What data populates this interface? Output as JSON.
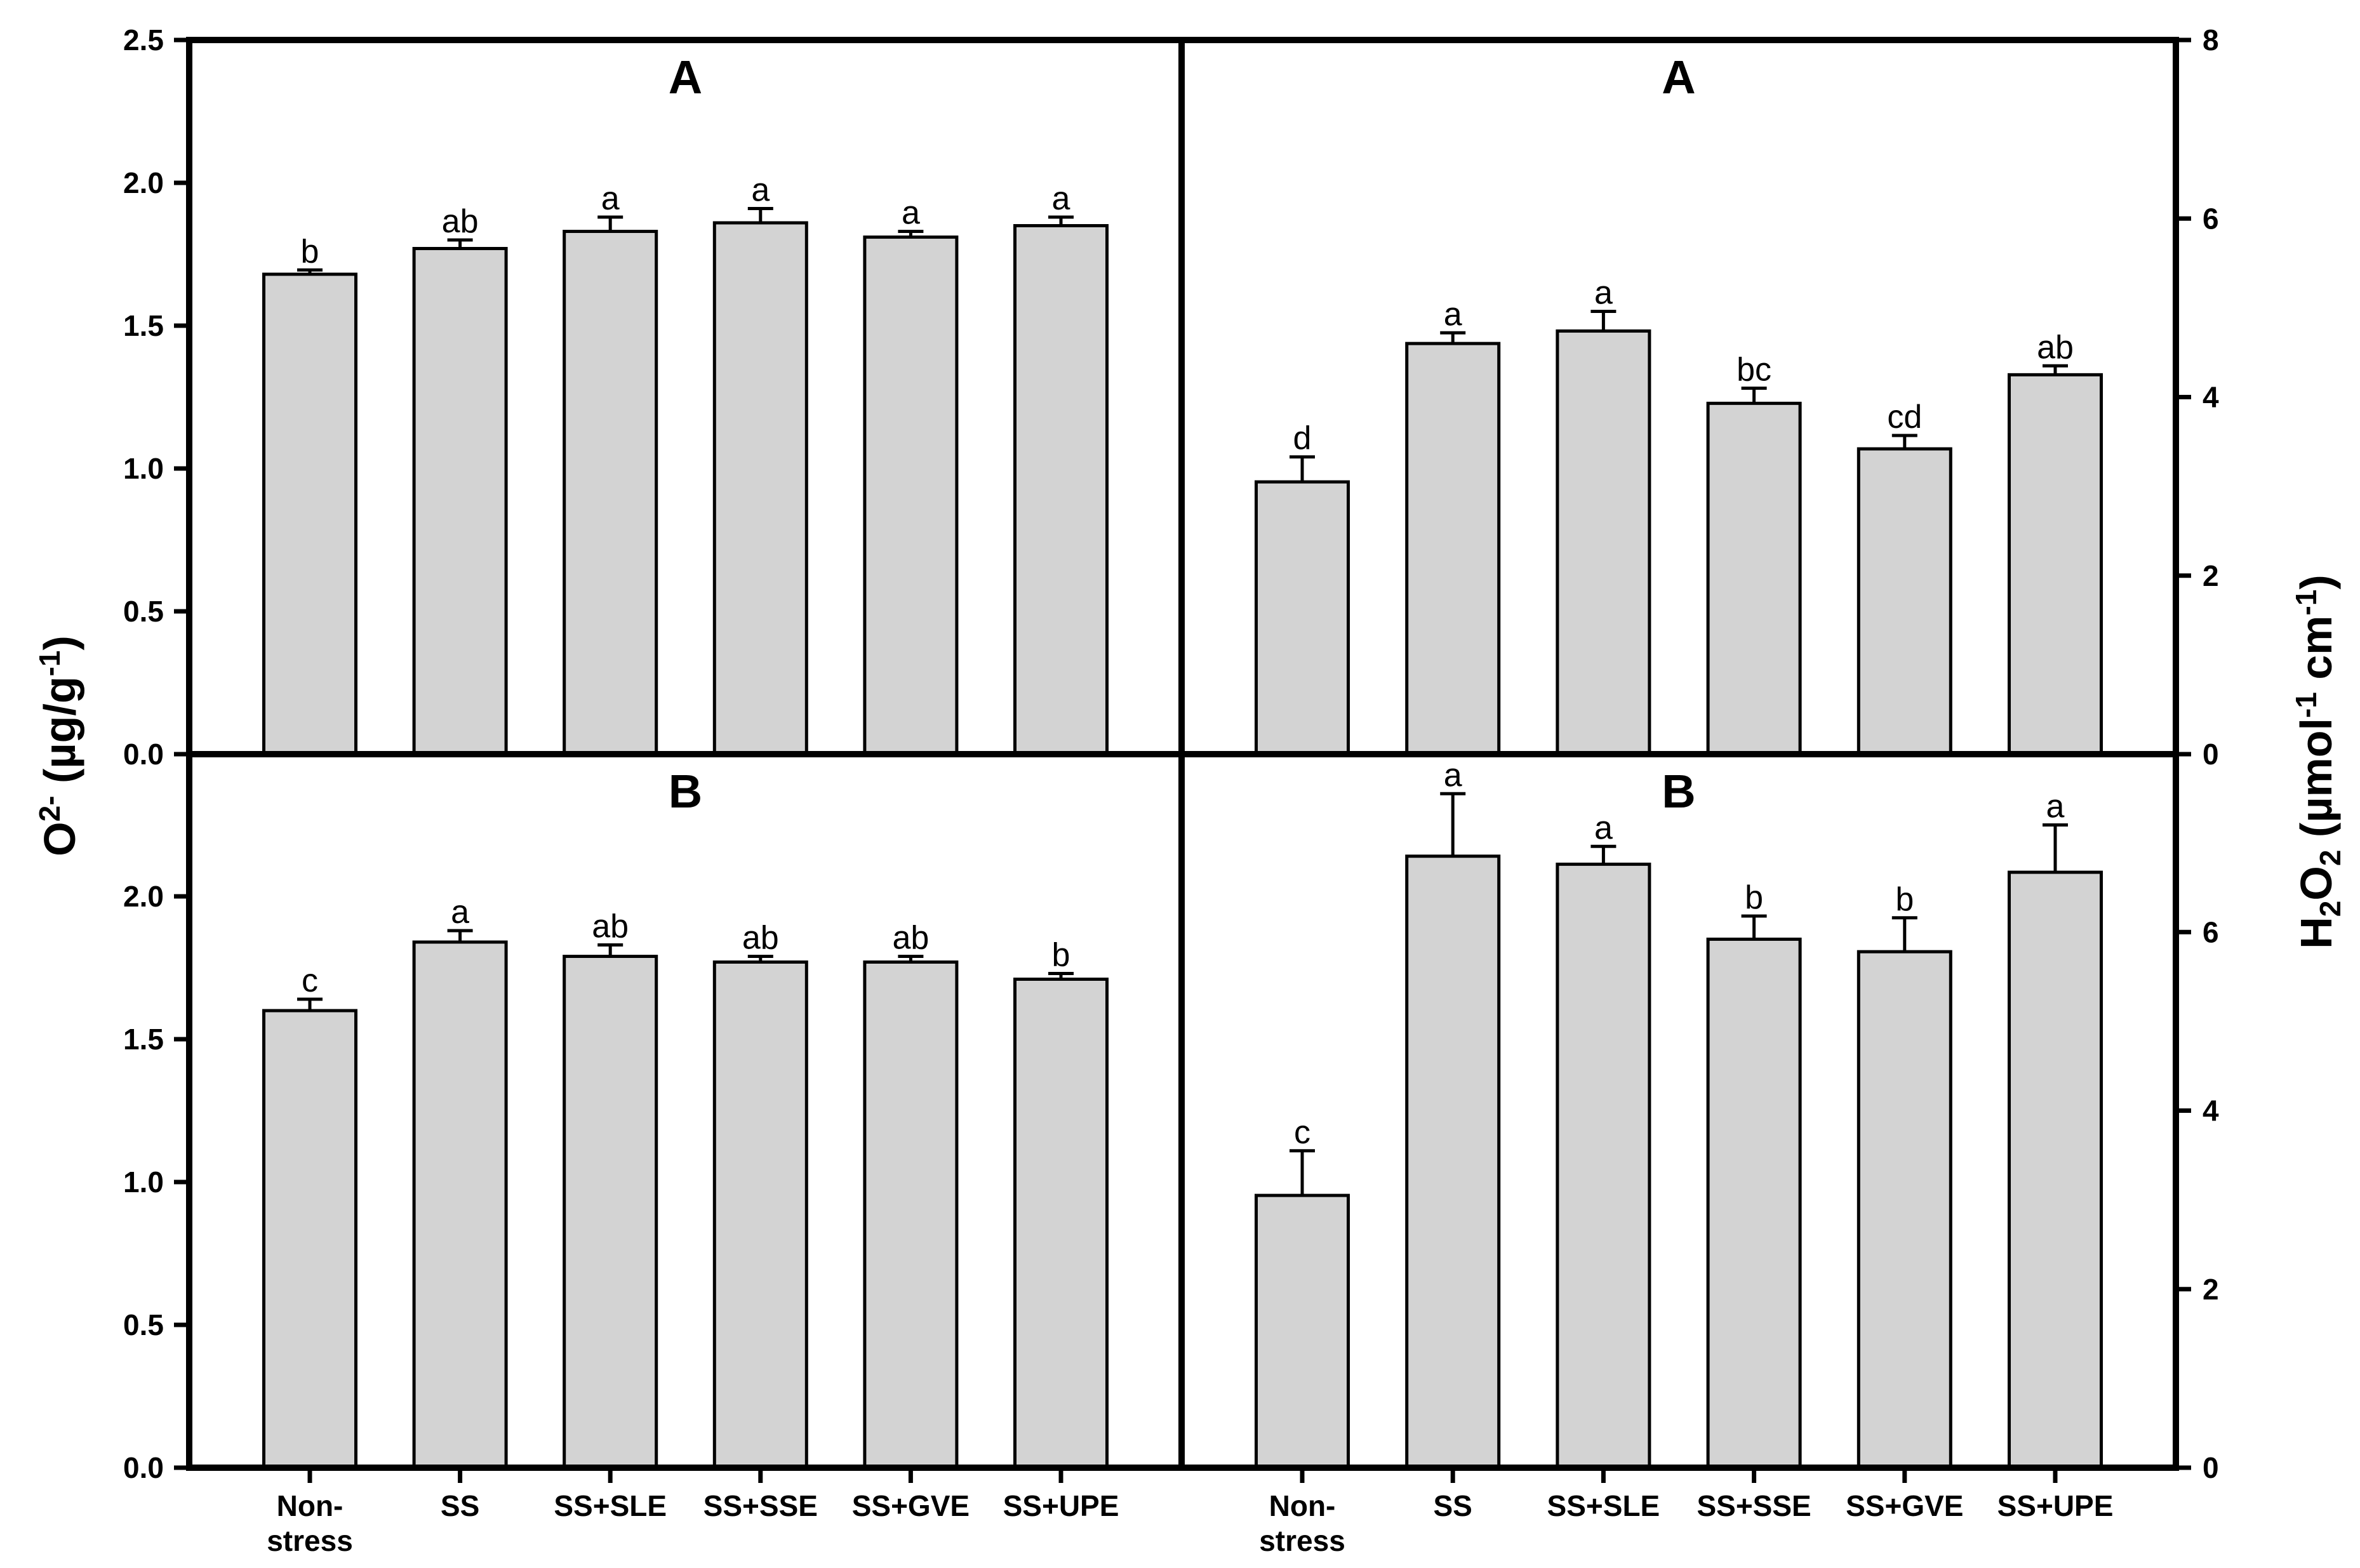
{
  "style": {
    "background": "#ffffff",
    "bar_fill": "#d3d3d3",
    "line_color": "#000000",
    "text_color": "#000000"
  },
  "axes": {
    "left_title_text": "O2- (µg/g-1)",
    "left_title_segments": [
      {
        "t": "O"
      },
      {
        "t": "2-",
        "sup": true
      },
      {
        "t": " (µg/g"
      },
      {
        "t": "-1",
        "sup": true
      },
      {
        "t": ")"
      }
    ],
    "right_title_text": "H2O2 (µmol-1 cm-1)",
    "right_title_segments": [
      {
        "t": "H"
      },
      {
        "t": "2",
        "sub": true
      },
      {
        "t": "O"
      },
      {
        "t": "2",
        "sub": true
      },
      {
        "t": " (µmol"
      },
      {
        "t": "-1",
        "sup": true
      },
      {
        "t": " cm"
      },
      {
        "t": "-1",
        "sup": true
      },
      {
        "t": ")"
      }
    ]
  },
  "categories": [
    "Non-\nstress",
    "SS",
    "SS+SLE",
    "SS+SSE",
    "SS+GVE",
    "SS+UPE"
  ],
  "chart_data": [
    {
      "type": "bar",
      "id": "o2-panel-A",
      "position": "top-left",
      "panel_label": "A",
      "measure": "O2-",
      "axis_side": "left",
      "categories": [
        "Non-\nstress",
        "SS",
        "SS+SLE",
        "SS+SSE",
        "SS+GVE",
        "SS+UPE"
      ],
      "values": [
        1.68,
        1.77,
        1.83,
        1.86,
        1.81,
        1.85
      ],
      "errors": [
        0.015,
        0.03,
        0.05,
        0.05,
        0.02,
        0.03
      ],
      "sig_letters": [
        "b",
        "ab",
        "a",
        "a",
        "a",
        "a"
      ],
      "ylim": [
        0,
        2.5
      ],
      "ytick_values": [
        0.0,
        0.5,
        1.0,
        1.5,
        2.0,
        2.5
      ],
      "ytick_labels": [
        "0.0",
        "0.5",
        "1.0",
        "1.5",
        "2.0",
        "2.5"
      ],
      "show_x_labels": false,
      "grid": false
    },
    {
      "type": "bar",
      "id": "h2o2-panel-A",
      "position": "top-right",
      "panel_label": "A",
      "measure": "H2O2",
      "axis_side": "right",
      "categories": [
        "Non-\nstress",
        "SS",
        "SS+SLE",
        "SS+SSE",
        "SS+GVE",
        "SS+UPE"
      ],
      "values": [
        3.05,
        4.6,
        4.74,
        3.93,
        3.42,
        4.25
      ],
      "errors": [
        0.28,
        0.12,
        0.22,
        0.17,
        0.15,
        0.1
      ],
      "sig_letters": [
        "d",
        "a",
        "a",
        "bc",
        "cd",
        "ab"
      ],
      "ylim": [
        0,
        8
      ],
      "ytick_values": [
        0,
        2,
        4,
        6,
        8
      ],
      "ytick_labels": [
        "0",
        "2",
        "4",
        "6",
        "8"
      ],
      "show_x_labels": false,
      "grid": false
    },
    {
      "type": "bar",
      "id": "o2-panel-B",
      "position": "bottom-left",
      "panel_label": "B",
      "measure": "O2-",
      "axis_side": "left",
      "categories": [
        "Non-\nstress",
        "SS",
        "SS+SLE",
        "SS+SSE",
        "SS+GVE",
        "SS+UPE"
      ],
      "values": [
        1.6,
        1.84,
        1.79,
        1.77,
        1.77,
        1.71
      ],
      "errors": [
        0.04,
        0.04,
        0.04,
        0.02,
        0.02,
        0.02
      ],
      "sig_letters": [
        "c",
        "a",
        "ab",
        "ab",
        "ab",
        "b"
      ],
      "ylim": [
        0,
        2.5
      ],
      "ytick_values": [
        0.0,
        0.5,
        1.0,
        1.5,
        2.0
      ],
      "ytick_labels": [
        "0.0",
        "0.5",
        "1.0",
        "1.5",
        "2.0"
      ],
      "show_x_labels": true,
      "grid": false
    },
    {
      "type": "bar",
      "id": "h2o2-panel-B",
      "position": "bottom-right",
      "panel_label": "B",
      "measure": "H2O2",
      "axis_side": "right",
      "categories": [
        "Non-\nstress",
        "SS",
        "SS+SLE",
        "SS+SSE",
        "SS+GVE",
        "SS+UPE"
      ],
      "values": [
        3.05,
        6.85,
        6.76,
        5.92,
        5.78,
        6.67
      ],
      "errors": [
        0.5,
        0.7,
        0.2,
        0.26,
        0.38,
        0.53
      ],
      "sig_letters": [
        "c",
        "a",
        "a",
        "b",
        "b",
        "a"
      ],
      "ylim": [
        0,
        8
      ],
      "ytick_values": [
        0,
        2,
        4,
        6
      ],
      "ytick_labels": [
        "0",
        "2",
        "4",
        "6"
      ],
      "show_x_labels": true,
      "grid": false
    }
  ]
}
